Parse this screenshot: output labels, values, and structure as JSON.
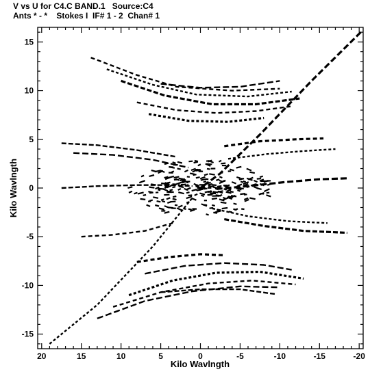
{
  "chart_data": {
    "type": "scatter",
    "title_line_1": "V vs U for C4.C BAND.1   Source:C4",
    "title_line_2": "Ants * - *    Stokes I  IF# 1 - 2  Chan# 1",
    "xlabel": "Kilo Wavlngth",
    "ylabel": "Kilo Wavlngth",
    "xlim": [
      20.5,
      -20.5
    ],
    "ylim": [
      -16.5,
      16.5
    ],
    "x_ticks": [
      "20",
      "15",
      "10",
      "5",
      "0",
      "-5",
      "-10",
      "-15",
      "-20"
    ],
    "x_tick_values": [
      20,
      15,
      10,
      5,
      0,
      -5,
      -10,
      -15,
      -20
    ],
    "y_ticks": [
      "15",
      "10",
      "5",
      "0",
      "-5",
      "-10",
      "-15"
    ],
    "y_tick_values": [
      15,
      10,
      5,
      0,
      -5,
      -10,
      -15
    ],
    "grid": false,
    "color": "#000000",
    "series": [
      {
        "description": "long uv tracks (symmetric about origin)",
        "tracks": [
          {
            "u": [
              -20.2,
              -14.0,
              -7.5,
              -2.5,
              0.0
            ],
            "v": [
              16.0,
              11.0,
              5.5,
              1.5,
              0.0
            ]
          },
          {
            "u": [
              13.8,
              8.0,
              3.0,
              -4.0,
              -10.0
            ],
            "v": [
              13.4,
              11.6,
              10.4,
              10.0,
              10.2
            ]
          },
          {
            "u": [
              11.8,
              6.0,
              0.5,
              -6.0,
              -11.5
            ],
            "v": [
              12.2,
              10.6,
              9.6,
              9.4,
              9.9
            ]
          },
          {
            "u": [
              10.0,
              4.5,
              -1.5,
              -7.0,
              -12.5
            ],
            "v": [
              11.0,
              9.5,
              8.6,
              8.6,
              9.2
            ]
          },
          {
            "u": [
              5.0,
              0.0,
              -5.0,
              -10.0
            ],
            "v": [
              10.7,
              10.3,
              10.4,
              11.0
            ]
          },
          {
            "u": [
              8.0,
              3.0,
              -2.0,
              -7.0,
              -11.5
            ],
            "v": [
              8.8,
              8.0,
              7.7,
              7.9,
              8.4
            ]
          },
          {
            "u": [
              6.5,
              1.5,
              -3.5,
              -8.0
            ],
            "v": [
              7.6,
              6.9,
              6.8,
              7.2
            ]
          },
          {
            "u": [
              17.5,
              13.0,
              8.0,
              3.0
            ],
            "v": [
              4.6,
              4.4,
              3.9,
              3.2
            ]
          },
          {
            "u": [
              16.0,
              11.0,
              6.0,
              1.5
            ],
            "v": [
              3.6,
              3.4,
              2.9,
              2.1
            ]
          },
          {
            "u": [
              -3.0,
              -7.5,
              -12.0,
              -15.5
            ],
            "v": [
              4.3,
              4.8,
              5.0,
              5.1
            ]
          },
          {
            "u": [
              -3.5,
              -8.5,
              -13.0,
              -17.0
            ],
            "v": [
              3.0,
              3.5,
              3.8,
              4.0
            ]
          },
          {
            "u": [
              17.5,
              13.0,
              8.0,
              4.0,
              1.0
            ],
            "v": [
              0.0,
              0.2,
              0.3,
              0.3,
              0.2
            ]
          },
          {
            "u": [
              -2.0,
              -6.0,
              -10.5,
              -15.0,
              -18.5
            ],
            "v": [
              -0.1,
              0.2,
              0.6,
              0.9,
              1.0
            ]
          },
          {
            "u": [
              15.0,
              11.0,
              7.0,
              3.5
            ],
            "v": [
              -5.0,
              -4.8,
              -4.4,
              -3.6
            ]
          },
          {
            "u": [
              -1.5,
              -6.0,
              -11.0,
              -16.0
            ],
            "v": [
              -2.1,
              -2.9,
              -3.4,
              -3.6
            ]
          },
          {
            "u": [
              -3.0,
              -8.0,
              -13.0,
              -18.5
            ],
            "v": [
              -3.2,
              -3.9,
              -4.4,
              -4.6
            ]
          },
          {
            "u": [
              13.0,
              7.0,
              1.0,
              -5.0,
              -10.0
            ],
            "v": [
              -13.4,
              -11.6,
              -10.6,
              -10.1,
              -10.2
            ]
          },
          {
            "u": [
              11.0,
              5.0,
              -1.0,
              -6.5,
              -12.0
            ],
            "v": [
              -12.2,
              -10.7,
              -9.8,
              -9.5,
              -9.9
            ]
          },
          {
            "u": [
              9.0,
              3.5,
              -2.0,
              -7.5,
              -13.0
            ],
            "v": [
              -11.0,
              -9.5,
              -8.7,
              -8.6,
              -9.3
            ]
          },
          {
            "u": [
              5.0,
              0.0,
              -5.0,
              -9.5
            ],
            "v": [
              -10.7,
              -10.4,
              -10.4,
              -10.9
            ]
          },
          {
            "u": [
              7.0,
              2.0,
              -3.0,
              -8.0,
              -11.5
            ],
            "v": [
              -8.8,
              -8.0,
              -7.7,
              -7.9,
              -8.4
            ]
          },
          {
            "u": [
              8.0,
              4.0,
              0.0,
              -3.0
            ],
            "v": [
              -7.6,
              -7.1,
              -6.8,
              -6.9
            ]
          },
          {
            "u": [
              19.0,
              13.0,
              6.0,
              1.0
            ],
            "v": [
              -16.0,
              -12.0,
              -6.0,
              -1.0
            ]
          }
        ]
      }
    ]
  }
}
